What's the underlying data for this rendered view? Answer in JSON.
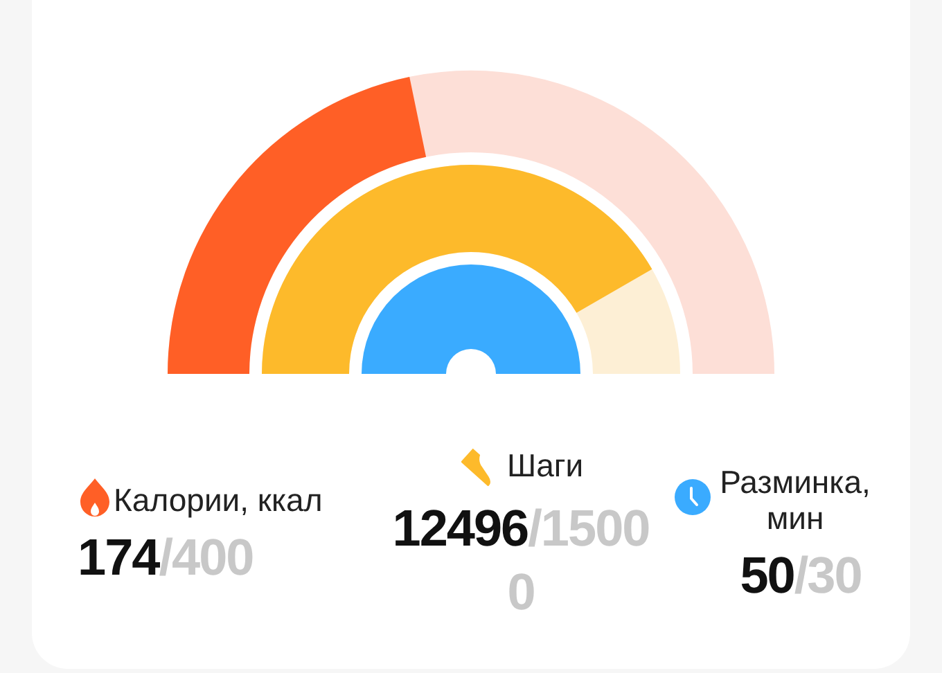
{
  "chart_data": {
    "type": "other",
    "categories": [
      "Калории, ккал",
      "Шаги",
      "Разминка, мин"
    ],
    "series": [
      {
        "values": [
          174,
          12496,
          50
        ],
        "colors": [
          "#ff5f26",
          "#fdba2b",
          "#3aabff"
        ],
        "value_labels": [
          "174",
          "12496",
          "50"
        ]
      },
      {
        "values": [
          400,
          15000,
          30
        ],
        "colors": [
          "#fddfd7",
          "#fdefd5",
          null
        ],
        "value_labels": [
          "/400",
          "/15000",
          "/30"
        ]
      }
    ]
  }
}
